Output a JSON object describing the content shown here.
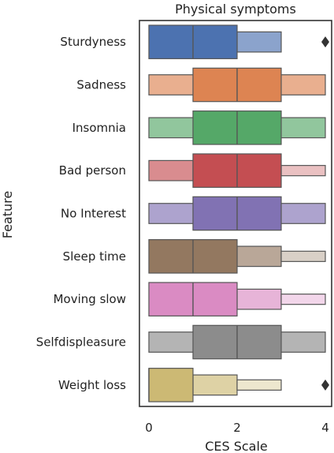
{
  "chart_data": {
    "type": "boxen",
    "title": "Physical symptoms",
    "xlabel": "CES Scale",
    "ylabel": "Feature",
    "xlim": [
      -0.2,
      4.15
    ],
    "xticks": [
      0,
      2,
      4
    ],
    "xtick_labels": [
      "0",
      "2",
      "4"
    ],
    "grid": false,
    "legend": "none",
    "series": [
      {
        "name": "Sturdyness",
        "color": "#4c72b0",
        "inner_box": [
          0,
          2
        ],
        "median": 1,
        "outer_boxes": [
          [
            2,
            3
          ]
        ],
        "outliers": [
          4
        ]
      },
      {
        "name": "Sadness",
        "color": "#dd8452",
        "inner_box": [
          1,
          3
        ],
        "median": 2,
        "outer_boxes": [
          [
            0,
            4
          ]
        ],
        "outliers": []
      },
      {
        "name": "Insomnia",
        "color": "#55a868",
        "inner_box": [
          1,
          3
        ],
        "median": 2,
        "outer_boxes": [
          [
            0,
            4
          ]
        ],
        "outliers": []
      },
      {
        "name": "Bad person",
        "color": "#c44e52",
        "inner_box": [
          1,
          3
        ],
        "median": 2,
        "outer_boxes": [
          [
            0,
            1
          ],
          [
            3,
            4
          ]
        ],
        "outliers": []
      },
      {
        "name": "No Interest",
        "color": "#8172b3",
        "inner_box": [
          1,
          3
        ],
        "median": 2,
        "outer_boxes": [
          [
            0,
            4
          ]
        ],
        "outliers": []
      },
      {
        "name": "Sleep time",
        "color": "#937860",
        "inner_box": [
          0,
          2
        ],
        "median": 1,
        "outer_boxes": [
          [
            2,
            3
          ],
          [
            3,
            4
          ]
        ],
        "outliers": []
      },
      {
        "name": "Moving slow",
        "color": "#da8bc3",
        "inner_box": [
          0,
          2
        ],
        "median": 1,
        "outer_boxes": [
          [
            2,
            3
          ],
          [
            3,
            4
          ]
        ],
        "outliers": []
      },
      {
        "name": "Selfdispleasure",
        "color": "#8c8c8c",
        "inner_box": [
          1,
          3
        ],
        "median": 2,
        "outer_boxes": [
          [
            0,
            4
          ]
        ],
        "outliers": []
      },
      {
        "name": "Weight loss",
        "color": "#ccb974",
        "inner_box": [
          0,
          1
        ],
        "median": 0,
        "outer_boxes": [
          [
            1,
            2
          ],
          [
            2,
            3
          ]
        ],
        "outliers": [
          4
        ]
      }
    ]
  }
}
